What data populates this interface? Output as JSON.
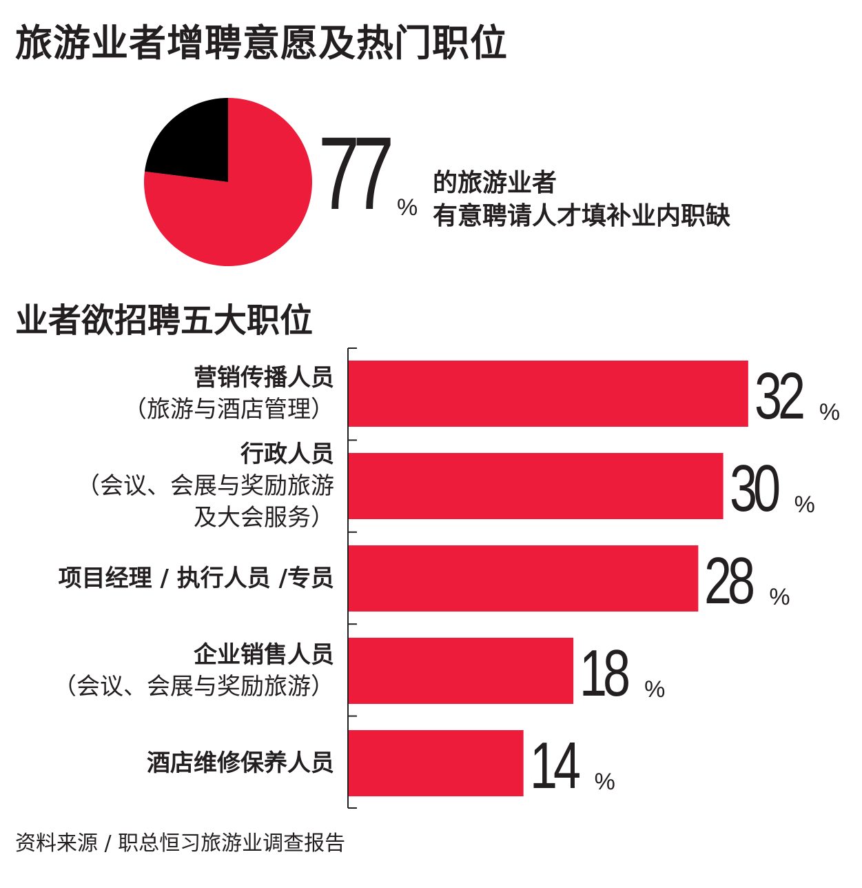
{
  "title": "旅游业者增聘意愿及热门职位",
  "pie": {
    "value": 77,
    "value_text": "77",
    "percent_sign": "%",
    "desc_line1": "的旅游业者",
    "desc_line2": "有意聘请人才填补业内职缺",
    "colors": {
      "main": "#ec1c3a",
      "rest": "#000000"
    }
  },
  "chart_data": [
    {
      "type": "pie",
      "values": [
        77,
        23
      ],
      "colors": [
        "#ec1c3a",
        "#000000"
      ]
    },
    {
      "type": "bar",
      "orientation": "horizontal",
      "title": "业者欲招聘五大职位",
      "categories": [
        {
          "main": "营销传播人员",
          "sub": [
            "（旅游与酒店管理）"
          ]
        },
        {
          "main": "行政人员",
          "sub": [
            "（会议、会展与奖励旅游",
            "及大会服务）"
          ]
        },
        {
          "main": "项目经理 / 执行人员 /专员",
          "sub": []
        },
        {
          "main": "企业销售人员",
          "sub": [
            "（会议、会展与奖励旅游）"
          ]
        },
        {
          "main": "酒店维修保养人员",
          "sub": []
        }
      ],
      "values": [
        32,
        30,
        28,
        18,
        14
      ],
      "value_labels": [
        "32",
        "30",
        "28",
        "18",
        "14"
      ],
      "unit": "%",
      "color": "#ec1c3a"
    }
  ],
  "source": "资料来源 / 职总恒习旅游业调查报告"
}
